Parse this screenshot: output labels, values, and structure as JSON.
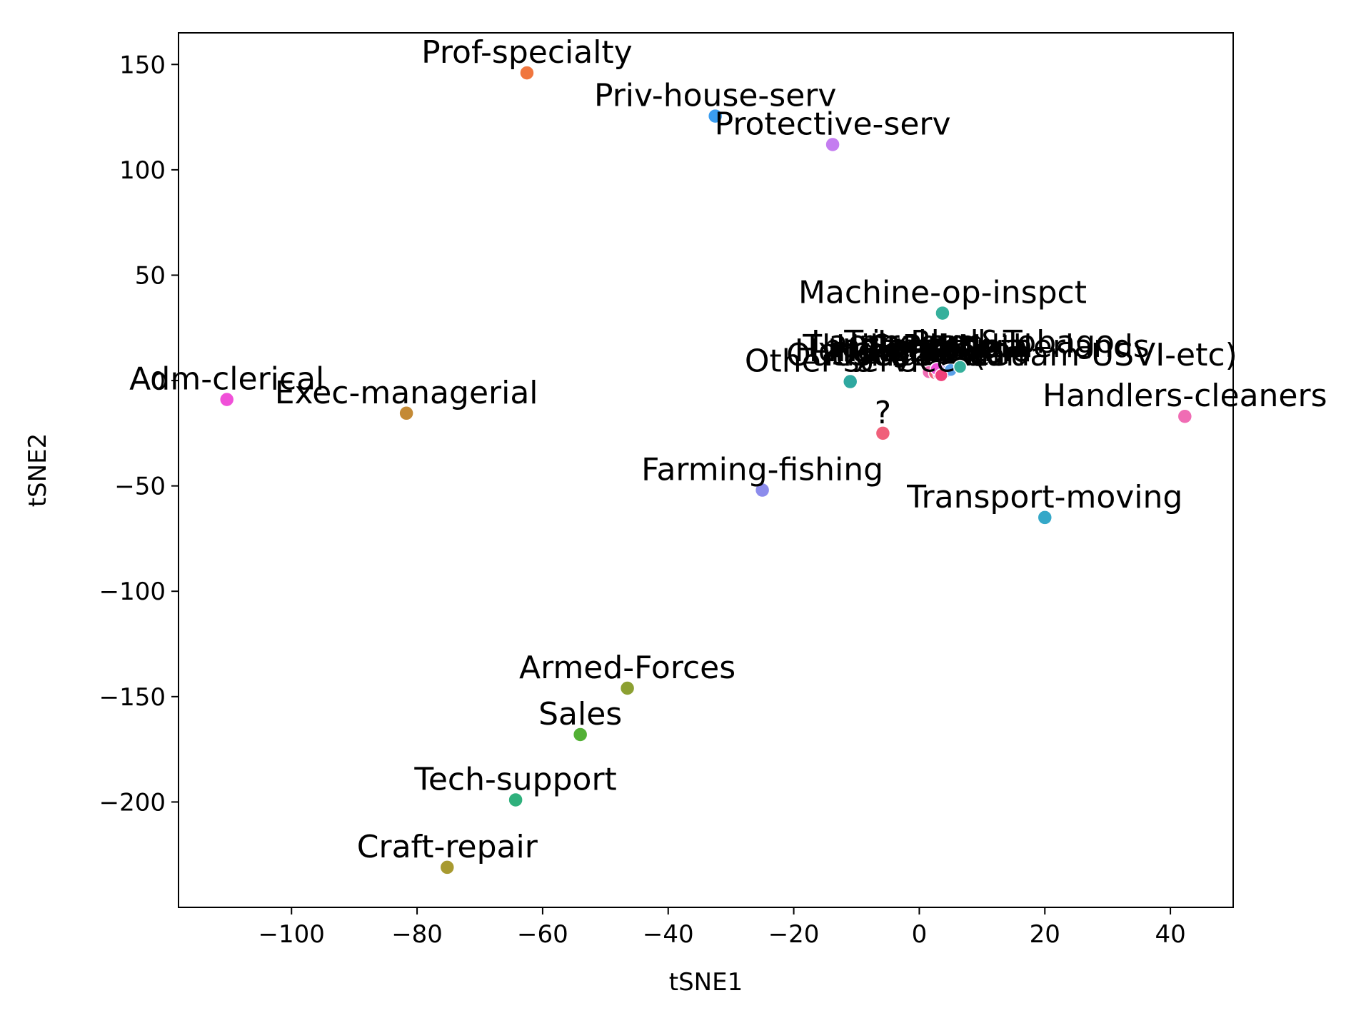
{
  "chart_data": {
    "type": "scatter",
    "title": "",
    "xlabel": "tSNE1",
    "ylabel": "tSNE2",
    "xlim": [
      -118,
      50
    ],
    "ylim": [
      -250,
      165
    ],
    "xticks": [
      -100,
      -80,
      -60,
      -40,
      -20,
      0,
      20,
      40
    ],
    "yticks": [
      -200,
      -150,
      -100,
      -50,
      0,
      50,
      100,
      150
    ],
    "grid": false,
    "legend": "none",
    "points": [
      {
        "label": "Prof-specialty",
        "x": -62.5,
        "y": 146,
        "color": "#f0763e"
      },
      {
        "label": "Priv-house-serv",
        "x": -32.5,
        "y": 125.5,
        "color": "#3a9df0"
      },
      {
        "label": "Protective-serv",
        "x": -13.8,
        "y": 112,
        "color": "#c47df0"
      },
      {
        "label": "Machine-op-inspct",
        "x": 3.7,
        "y": 32,
        "color": "#36b09c"
      },
      {
        "label": "Adm-clerical",
        "x": -110.3,
        "y": -9,
        "color": "#f050d8"
      },
      {
        "label": "Exec-managerial",
        "x": -81.7,
        "y": -15.5,
        "color": "#c48a35"
      },
      {
        "label": "Other-service",
        "x": -11,
        "y": -0.5,
        "color": "#2fa8a0"
      },
      {
        "label": "Handlers-cleaners",
        "x": 42.3,
        "y": -17,
        "color": "#f06cb4"
      },
      {
        "label": "?",
        "x": -5.8,
        "y": -25,
        "color": "#f0607a"
      },
      {
        "label": "Farming-fishing",
        "x": -25,
        "y": -52,
        "color": "#8c8cec"
      },
      {
        "label": "Transport-moving",
        "x": 20,
        "y": -65,
        "color": "#35a8c8"
      },
      {
        "label": "Armed-Forces",
        "x": -46.5,
        "y": -146,
        "color": "#8ca032"
      },
      {
        "label": "Sales",
        "x": -54,
        "y": -168,
        "color": "#52b035"
      },
      {
        "label": "Tech-support",
        "x": -64.3,
        "y": -199,
        "color": "#2fb07c"
      },
      {
        "label": "Craft-repair",
        "x": -75.2,
        "y": -231,
        "color": "#a89a30"
      }
    ],
    "cluster": {
      "labels": [
        "Outlying-US(Guam-USVI-etc)",
        "Honduras",
        "Thailand",
        "Laos",
        "Yugoslavia",
        "Hungary",
        "Holand-Netherlands",
        "Trinadad&Tobago",
        "Scotland",
        "Ecuador",
        "Cambodia",
        "Ireland",
        "France",
        "Haiti",
        "Portugal",
        "Peru",
        "Taiwan",
        "Poland"
      ],
      "points": [
        {
          "x": 1.5,
          "y": 4,
          "color": "#f06cb4"
        },
        {
          "x": 2.5,
          "y": 3.5,
          "color": "#f0607a"
        },
        {
          "x": 3.2,
          "y": 3,
          "color": "#e070d0"
        },
        {
          "x": 3.8,
          "y": 3.8,
          "color": "#a08cf0"
        },
        {
          "x": 4.5,
          "y": 4.5,
          "color": "#8c8cec"
        },
        {
          "x": 5.0,
          "y": 5,
          "color": "#5aa0e8"
        },
        {
          "x": 6.5,
          "y": 6.5,
          "color": "#36b09c"
        },
        {
          "x": 2.8,
          "y": 5.5,
          "color": "#f050d8"
        },
        {
          "x": 3.5,
          "y": 2.5,
          "color": "#f0407a"
        }
      ]
    }
  }
}
